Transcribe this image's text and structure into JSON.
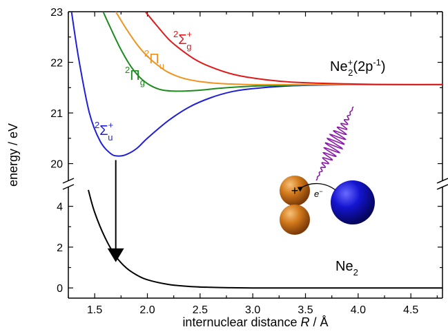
{
  "chart_data": {
    "type": "line",
    "xlabel_prefix": "internuclear distance ",
    "xlabel_var": "R",
    "xlabel_unit": " / Å",
    "ylabel": "energy / eV",
    "xlim": [
      1.25,
      4.8
    ],
    "xticks": [
      "1.5",
      "2.0",
      "2.5",
      "3.0",
      "3.5",
      "4.0",
      "4.5"
    ],
    "yticks_upper": [
      "20",
      "21",
      "22",
      "23"
    ],
    "yticks_lower": [
      "0",
      "2",
      "4"
    ],
    "ylim_upper": [
      19.6,
      23.0
    ],
    "ylim_lower": [
      -0.5,
      5.0
    ],
    "axis_break": true,
    "series": [
      {
        "name": "Σu+",
        "color": "#1f1fd6",
        "panel": "upper",
        "x": [
          1.28,
          1.35,
          1.45,
          1.55,
          1.65,
          1.72,
          1.8,
          1.9,
          2.0,
          2.2,
          2.4,
          2.6,
          2.8,
          3.0,
          3.3,
          3.6,
          4.0,
          4.4,
          4.8
        ],
        "y": [
          23.0,
          22.05,
          21.0,
          20.45,
          20.2,
          20.15,
          20.18,
          20.3,
          20.5,
          20.85,
          21.12,
          21.3,
          21.42,
          21.48,
          21.53,
          21.55,
          21.56,
          21.56,
          21.56
        ]
      },
      {
        "name": "Πg",
        "color": "#1e8a1e",
        "panel": "upper",
        "x": [
          1.58,
          1.65,
          1.75,
          1.85,
          1.95,
          2.05,
          2.15,
          2.3,
          2.5,
          2.7,
          3.0,
          3.4,
          3.8,
          4.2,
          4.8
        ],
        "y": [
          23.0,
          22.68,
          22.25,
          21.9,
          21.66,
          21.52,
          21.45,
          21.43,
          21.45,
          21.49,
          21.53,
          21.55,
          21.56,
          21.56,
          21.56
        ]
      },
      {
        "name": "Πu",
        "color": "#f0921e",
        "panel": "upper",
        "x": [
          1.7,
          1.8,
          1.9,
          2.0,
          2.1,
          2.2,
          2.35,
          2.5,
          2.7,
          3.0,
          3.3,
          3.7,
          4.2,
          4.8
        ],
        "y": [
          23.0,
          22.66,
          22.36,
          22.12,
          21.94,
          21.8,
          21.68,
          21.62,
          21.58,
          21.56,
          21.56,
          21.56,
          21.56,
          21.56
        ]
      },
      {
        "name": "Σg+",
        "color": "#e01a1a",
        "panel": "upper",
        "x": [
          1.98,
          2.1,
          2.2,
          2.3,
          2.45,
          2.6,
          2.8,
          3.0,
          3.3,
          3.6,
          4.0,
          4.4,
          4.8
        ],
        "y": [
          23.0,
          22.7,
          22.46,
          22.28,
          22.06,
          21.91,
          21.77,
          21.69,
          21.62,
          21.59,
          21.57,
          21.56,
          21.56
        ]
      },
      {
        "name": "Ne2",
        "color": "#000000",
        "panel": "lower",
        "x": [
          1.44,
          1.5,
          1.6,
          1.7,
          1.8,
          1.9,
          2.0,
          2.2,
          2.4,
          2.6,
          2.8,
          3.0,
          3.5,
          4.0,
          4.8
        ],
        "y": [
          4.8,
          3.7,
          2.45,
          1.55,
          0.98,
          0.63,
          0.4,
          0.17,
          0.07,
          0.03,
          0.01,
          0.0,
          0.0,
          0.0,
          0.0
        ]
      }
    ],
    "labels": {
      "sigma_u": {
        "sup_left": "2",
        "symbol": "Σ",
        "sub": "u",
        "sup": "+"
      },
      "pi_g": {
        "sup_left": "2",
        "symbol": "Π",
        "sub": "g"
      },
      "pi_u": {
        "sup_left": "2",
        "symbol": "Π",
        "sub": "u"
      },
      "sigma_g": {
        "sup_left": "2",
        "symbol": "Σ",
        "sub": "g",
        "sup": "+"
      },
      "ion_state": {
        "base": "Ne",
        "sub": "2",
        "sup": "+",
        "rest": "(2p",
        "exp": "-1",
        "close": ")"
      },
      "ground_state": {
        "base": "Ne",
        "sub": "2"
      }
    },
    "transition_arrow": {
      "x": 1.7,
      "y_from_upper": 20.15,
      "y_to_lower": 1.4
    },
    "inset": {
      "electron_label": "e",
      "electron_sup": "−",
      "plus_sign": "+"
    }
  }
}
